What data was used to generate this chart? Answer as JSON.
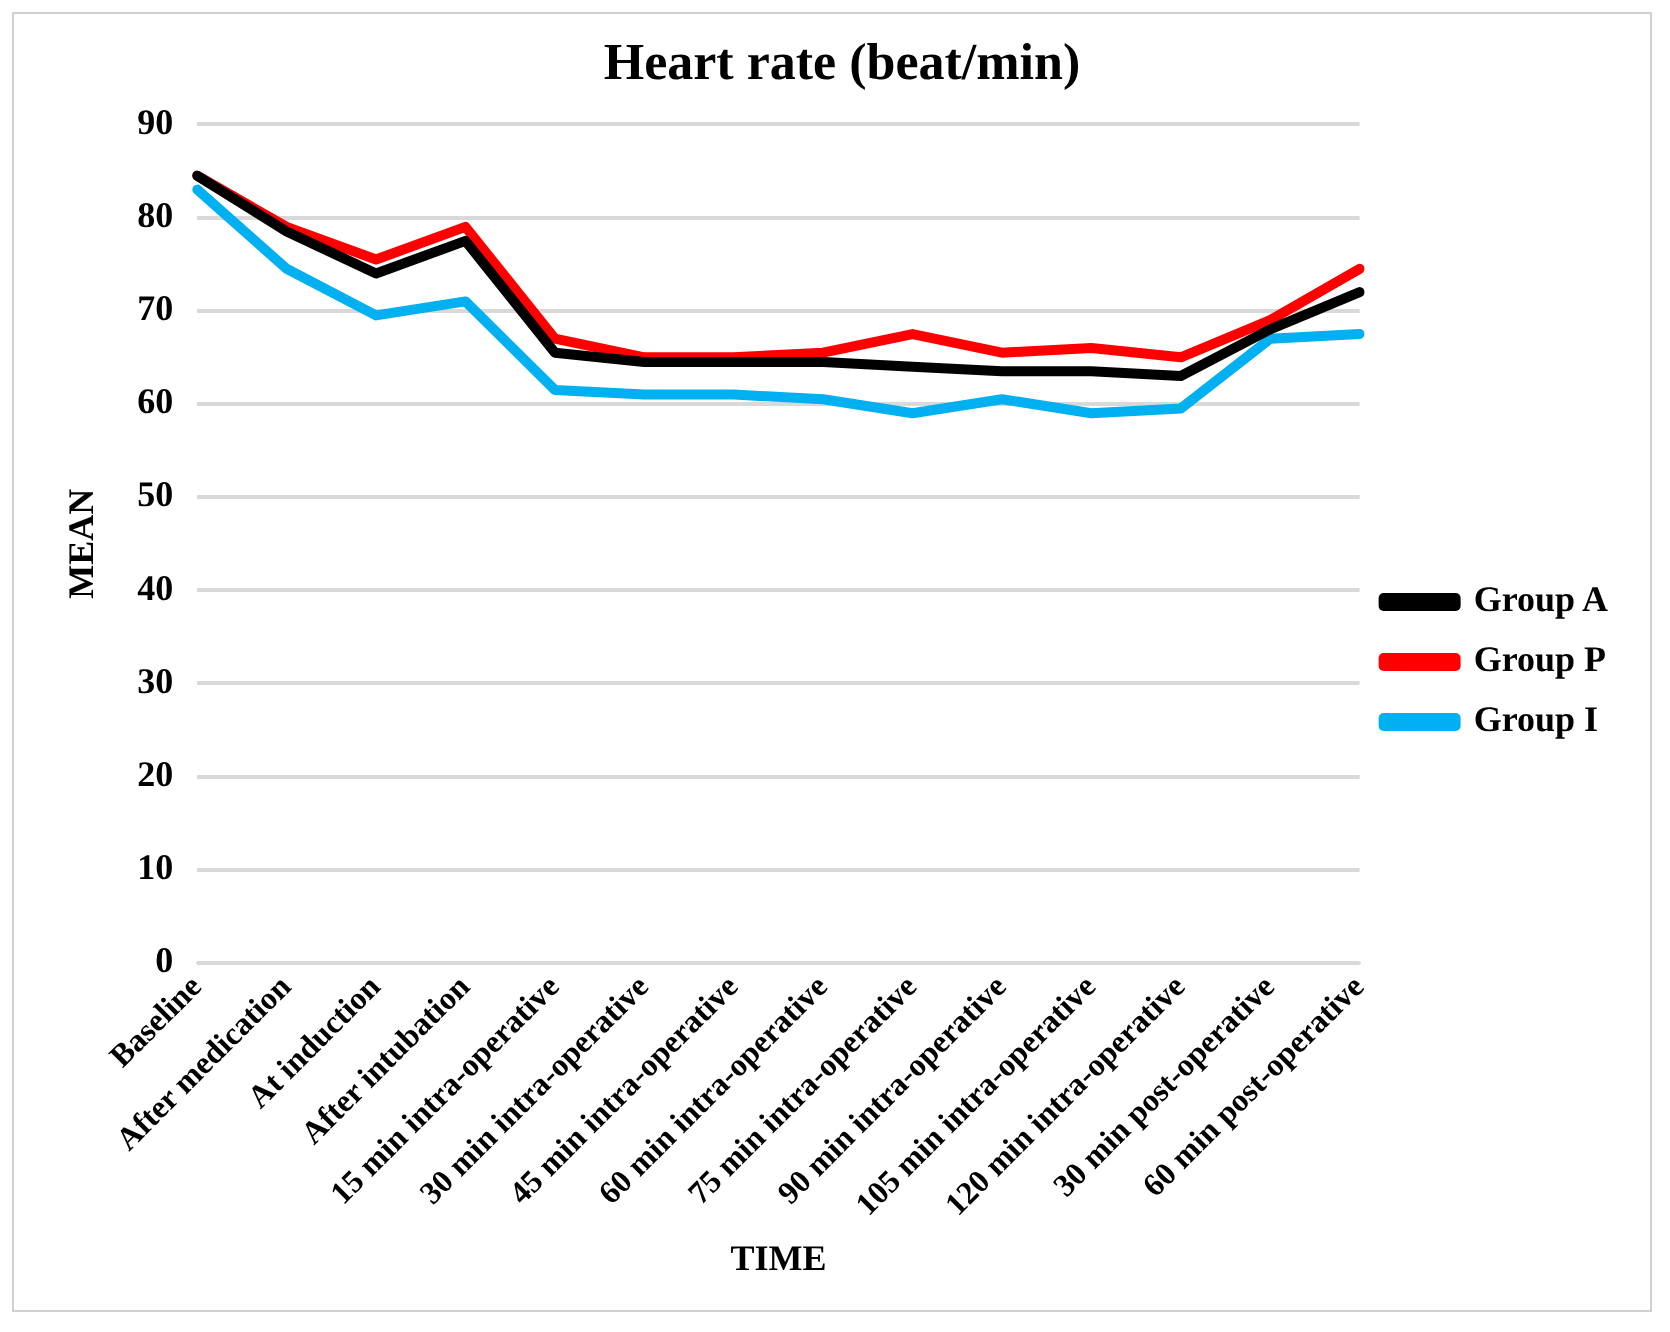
{
  "chart_data": {
    "type": "line",
    "title": "Heart rate (beat/min)",
    "xlabel": "TIME",
    "ylabel": "MEAN",
    "categories": [
      "Baseline",
      "After medication",
      "At induction",
      "After intubation",
      "15 min intra-operative",
      "30 min intra-operative",
      "45 min intra-operative",
      "60 min intra-operative",
      "75 min intra-operative",
      "90 min intra-operative",
      "105 min intra-operative",
      "120 min intra-operative",
      "30 min post-operative",
      "60 min post-operative"
    ],
    "series": [
      {
        "name": "Group A",
        "color": "#000000",
        "values": [
          84.5,
          78.5,
          74,
          77.5,
          65.5,
          64.5,
          64.5,
          64.5,
          64,
          63.5,
          63.5,
          63,
          68,
          72
        ]
      },
      {
        "name": "Group P",
        "color": "#ff0000",
        "values": [
          84.5,
          79,
          75.5,
          79,
          67,
          65,
          65,
          65.5,
          67.5,
          65.5,
          66,
          65,
          69,
          74.5
        ]
      },
      {
        "name": "Group I",
        "color": "#00b0f0",
        "values": [
          83,
          74.5,
          69.5,
          71,
          61.5,
          61,
          61,
          60.5,
          59,
          60.5,
          59,
          59.5,
          67,
          67.5
        ]
      }
    ],
    "ylim": [
      0,
      90
    ],
    "yticks": [
      0,
      10,
      20,
      30,
      40,
      50,
      60,
      70,
      80,
      90
    ],
    "grid": "y",
    "legend": "right",
    "marker": "none",
    "line_style": "solid"
  }
}
